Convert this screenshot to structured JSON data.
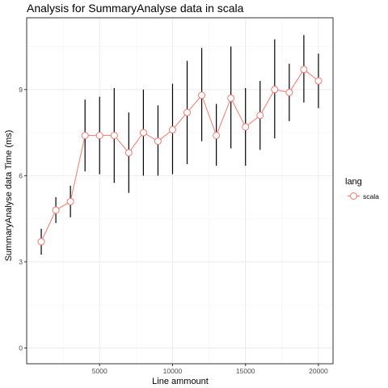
{
  "chart_data": {
    "type": "line",
    "title": "Analysis for SummaryAnalyse data in scala",
    "xlabel": "Line ammount",
    "ylabel": "SummaryAnalyse data Time (ms)",
    "xlim": [
      0,
      21000
    ],
    "ylim": [
      -0.55,
      11.5
    ],
    "xticks": [
      5000,
      10000,
      15000,
      20000
    ],
    "yticks": [
      0,
      3,
      6,
      9
    ],
    "grid": true,
    "legend": {
      "title": "lang",
      "position": "right"
    },
    "colors": {
      "series": "#f8766d",
      "errorbar": "#000000",
      "grid_major": "#ebebeb",
      "panel_border": "#333333"
    },
    "series": [
      {
        "name": "scala",
        "x": [
          1000,
          2000,
          3000,
          4000,
          5000,
          6000,
          7000,
          8000,
          9000,
          10000,
          11000,
          12000,
          13000,
          14000,
          15000,
          16000,
          17000,
          18000,
          19000,
          20000
        ],
        "y": [
          3.7,
          4.8,
          5.1,
          7.4,
          7.4,
          7.4,
          6.8,
          7.5,
          7.2,
          7.6,
          8.2,
          8.8,
          7.4,
          8.7,
          7.7,
          8.1,
          9.0,
          8.9,
          9.7,
          9.3
        ],
        "ymin": [
          3.25,
          4.35,
          4.55,
          6.15,
          6.05,
          5.75,
          5.4,
          6.0,
          6.0,
          6.05,
          6.4,
          7.2,
          6.35,
          6.95,
          6.35,
          6.9,
          7.3,
          7.9,
          8.55,
          8.35
        ],
        "ymax": [
          4.15,
          5.25,
          5.65,
          8.65,
          8.75,
          9.05,
          8.2,
          9.0,
          8.45,
          9.2,
          10.0,
          10.45,
          8.5,
          10.5,
          9.05,
          9.3,
          10.75,
          9.9,
          10.9,
          10.25
        ]
      }
    ]
  }
}
